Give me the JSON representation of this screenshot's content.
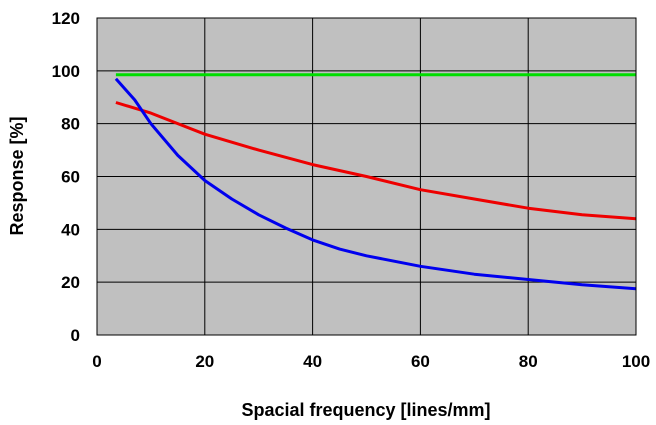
{
  "chart_data": {
    "type": "line",
    "title": "",
    "xlabel": "Spacial frequency [lines/mm]",
    "ylabel": "Response [%]",
    "xlim": [
      0,
      100
    ],
    "ylim": [
      0,
      120
    ],
    "x_ticks": [
      "0",
      "20",
      "40",
      "60",
      "80",
      "100"
    ],
    "y_ticks": [
      "0",
      "20",
      "40",
      "60",
      "80",
      "100",
      "120"
    ],
    "grid": true,
    "plot_background": "#c0c0c0",
    "legend": "none",
    "series": [
      {
        "color": "#00dd00",
        "points": [
          [
            3.5,
            98.5
          ],
          [
            100,
            98.5
          ]
        ]
      },
      {
        "color": "#ee0000",
        "points": [
          [
            3.5,
            88
          ],
          [
            10,
            84
          ],
          [
            20,
            76
          ],
          [
            30,
            70
          ],
          [
            40,
            64.5
          ],
          [
            50,
            60
          ],
          [
            60,
            55
          ],
          [
            70,
            51.5
          ],
          [
            80,
            48
          ],
          [
            90,
            45.5
          ],
          [
            100,
            44
          ]
        ]
      },
      {
        "color": "#0000ee",
        "points": [
          [
            3.5,
            97
          ],
          [
            7,
            89
          ],
          [
            10,
            80
          ],
          [
            15,
            68
          ],
          [
            20,
            58.5
          ],
          [
            25,
            51.5
          ],
          [
            30,
            45.5
          ],
          [
            35,
            40.5
          ],
          [
            40,
            36
          ],
          [
            45,
            32.5
          ],
          [
            50,
            30
          ],
          [
            60,
            26
          ],
          [
            70,
            23
          ],
          [
            80,
            21
          ],
          [
            90,
            19
          ],
          [
            100,
            17.5
          ]
        ]
      }
    ]
  }
}
